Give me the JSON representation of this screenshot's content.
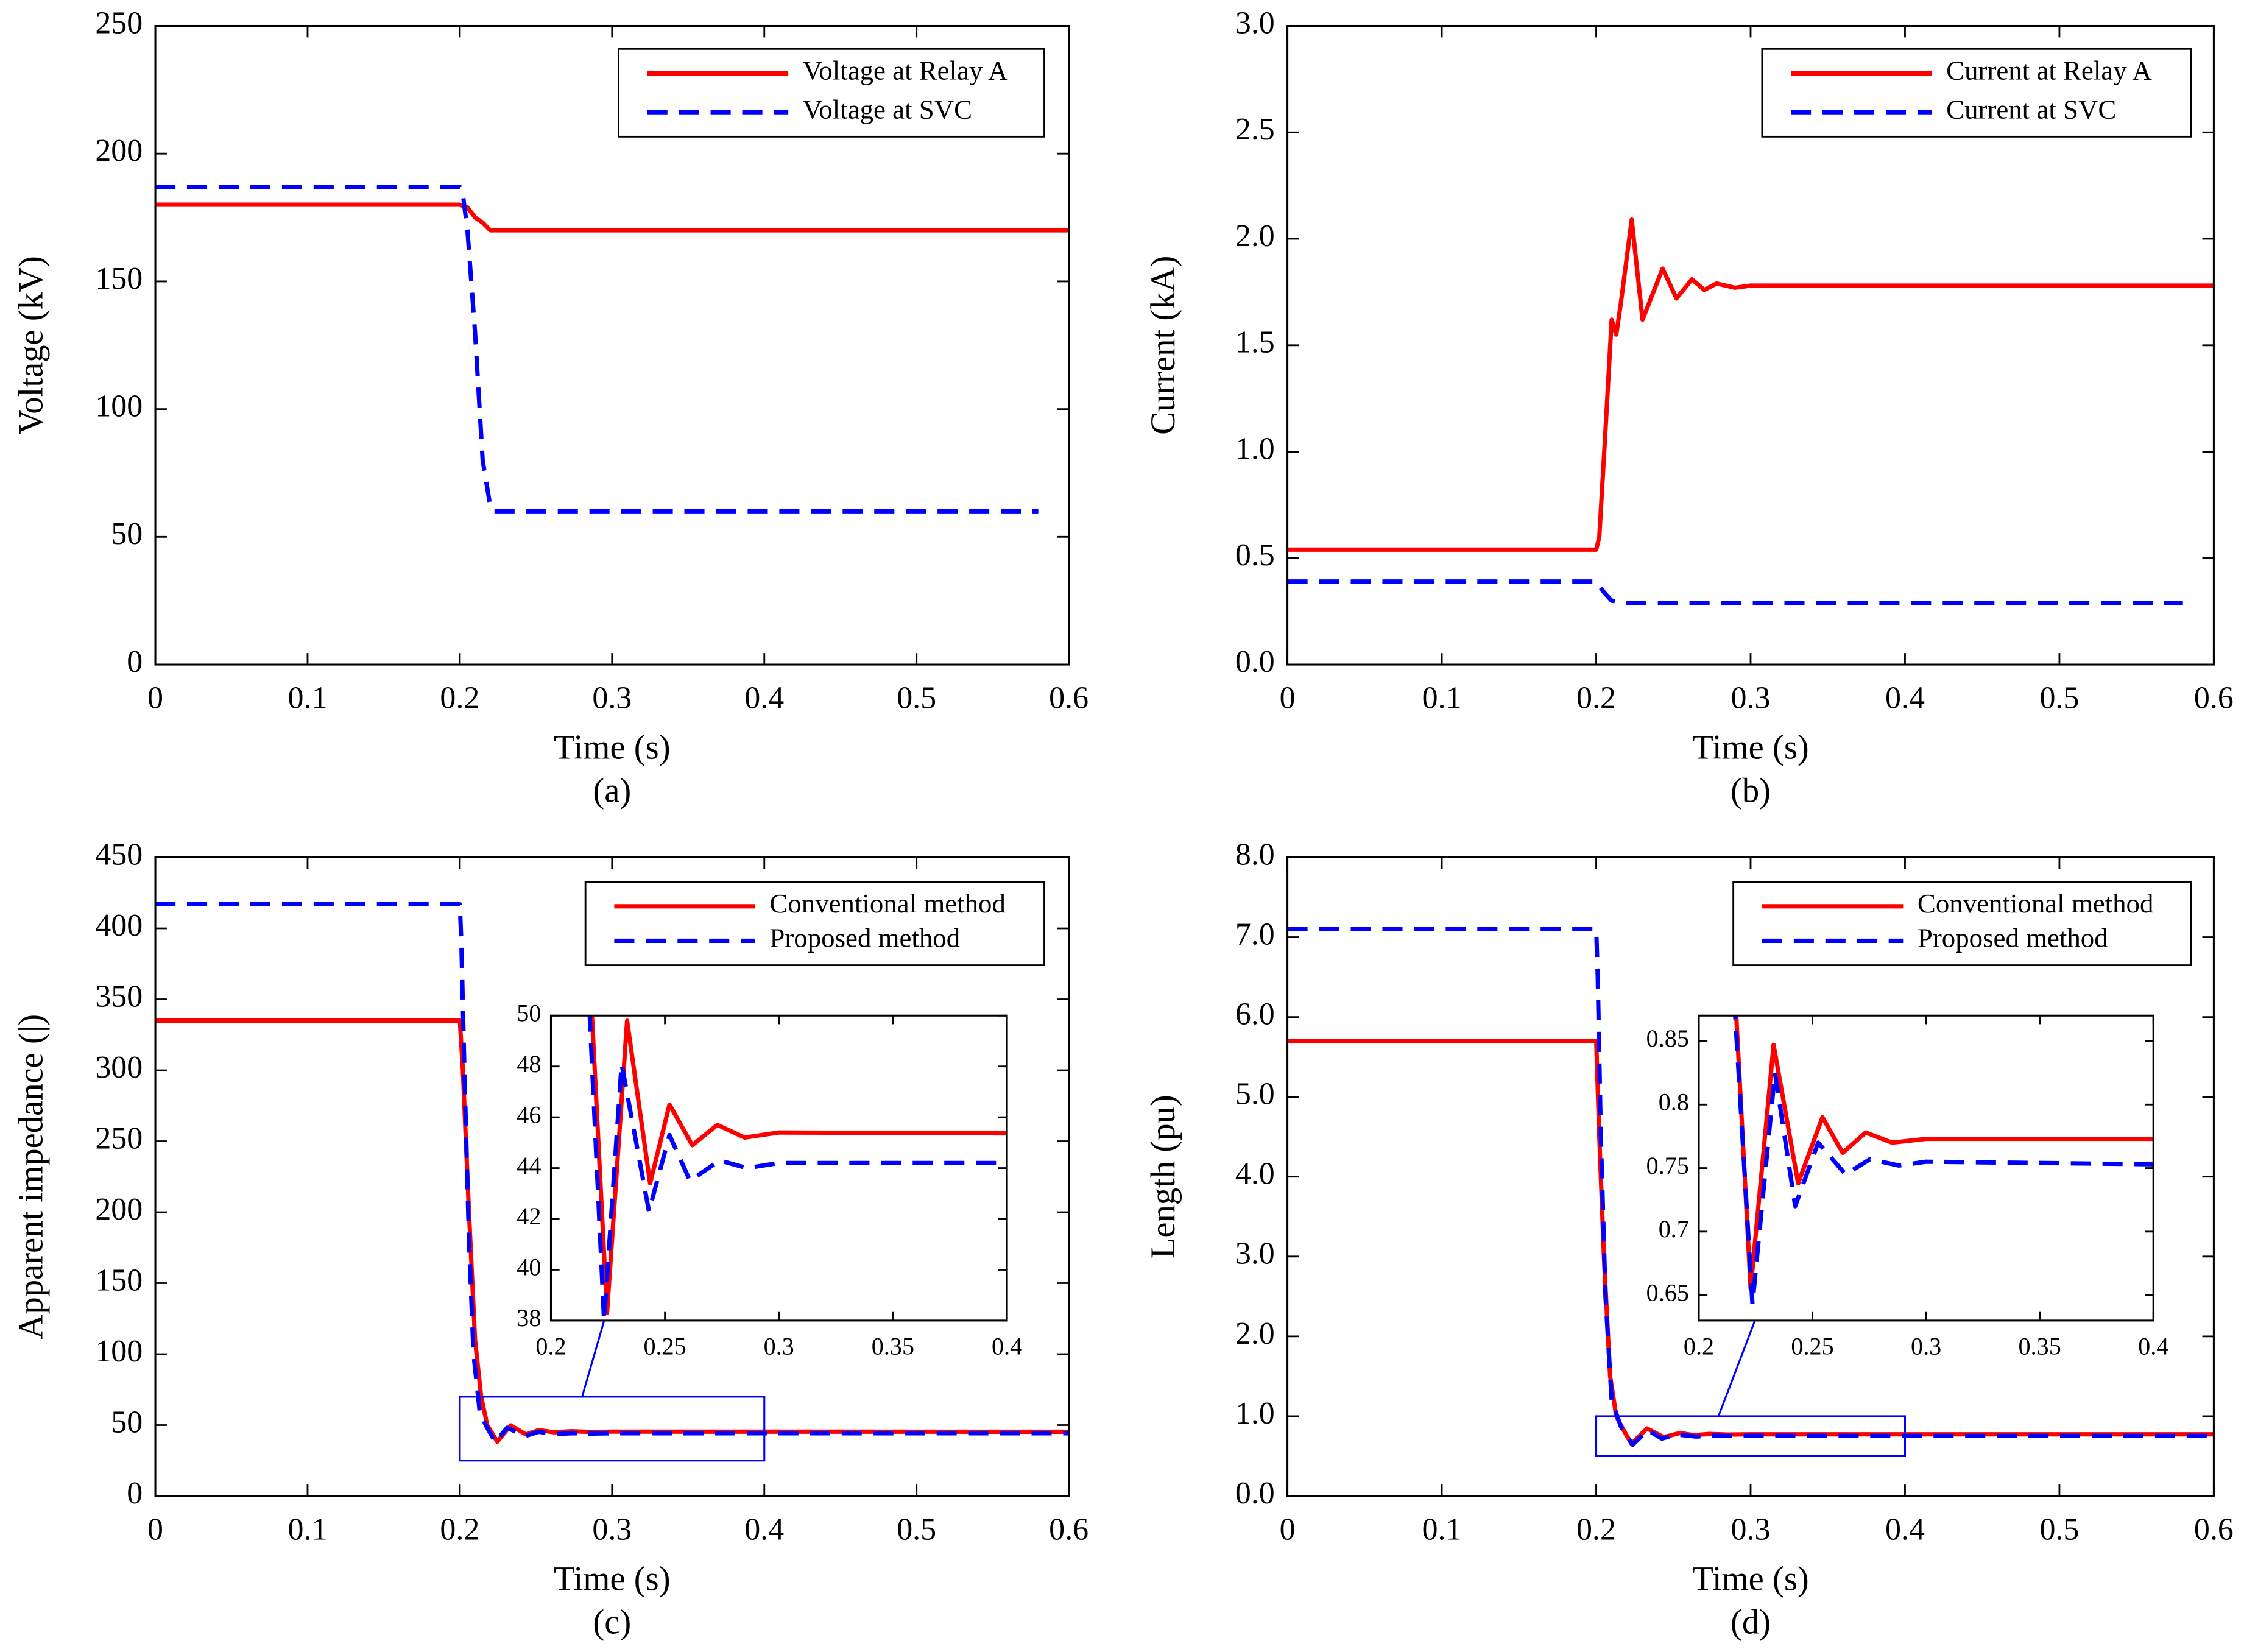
{
  "chart_data": [
    {
      "type": "line",
      "xlabel": "Time (s)",
      "ylabel": "Voltage (kV)",
      "caption": "(a)",
      "xlim": [
        0,
        0.6
      ],
      "xticks": [
        0,
        0.1,
        0.2,
        0.3,
        0.4,
        0.5,
        0.6
      ],
      "ylim": [
        0,
        250
      ],
      "yticks": [
        0,
        50,
        100,
        150,
        200,
        250
      ],
      "legend": "upper right",
      "series": [
        {
          "name": "Voltage at Relay A",
          "color": "#ff0000",
          "style": "solid",
          "x": [
            0,
            0.2,
            0.205,
            0.21,
            0.215,
            0.22,
            0.6
          ],
          "values": [
            180,
            180,
            179,
            175,
            173,
            170,
            170
          ]
        },
        {
          "name": "Voltage at SVC",
          "color": "#0000ff",
          "style": "dashed",
          "x": [
            0,
            0.2,
            0.202,
            0.205,
            0.21,
            0.215,
            0.22,
            0.222,
            0.225,
            0.58
          ],
          "values": [
            187,
            187,
            184,
            170,
            130,
            80,
            62,
            60,
            60,
            60
          ]
        }
      ]
    },
    {
      "type": "line",
      "xlabel": "Time (s)",
      "ylabel": "Current (kA)",
      "caption": "(b)",
      "xlim": [
        0,
        0.6
      ],
      "xticks": [
        0,
        0.1,
        0.2,
        0.3,
        0.4,
        0.5,
        0.6
      ],
      "ylim": [
        0,
        3
      ],
      "yticks": [
        {
          "value": 0,
          "label": "0.0"
        },
        0.5,
        {
          "value": 1,
          "label": "1.0"
        },
        1.5,
        {
          "value": 2,
          "label": "2.0"
        },
        2.5,
        {
          "value": 3,
          "label": "3.0"
        }
      ],
      "legend": "upper right",
      "series": [
        {
          "name": "Current at Relay A",
          "color": "#ff0000",
          "style": "solid",
          "x": [
            0,
            0.2,
            0.202,
            0.206,
            0.21,
            0.213,
            0.216,
            0.223,
            0.23,
            0.243,
            0.252,
            0.262,
            0.27,
            0.278,
            0.29,
            0.3,
            0.6
          ],
          "values": [
            0.54,
            0.54,
            0.6,
            1.1,
            1.62,
            1.55,
            1.7,
            2.09,
            1.62,
            1.86,
            1.72,
            1.81,
            1.76,
            1.79,
            1.77,
            1.78,
            1.78
          ]
        },
        {
          "name": "Current at SVC",
          "color": "#0000ff",
          "style": "dashed",
          "x": [
            0,
            0.2,
            0.205,
            0.21,
            0.22,
            0.58
          ],
          "values": [
            0.39,
            0.39,
            0.34,
            0.3,
            0.29,
            0.29
          ]
        }
      ]
    },
    {
      "type": "line",
      "xlabel": "Time (s)",
      "ylabel": "Apparent impedance (|)",
      "caption": "(c)",
      "xlim": [
        0,
        0.6
      ],
      "xticks": [
        0,
        0.1,
        0.2,
        0.3,
        0.4,
        0.5,
        0.6
      ],
      "ylim": [
        0,
        450
      ],
      "yticks": [
        0,
        50,
        100,
        150,
        200,
        250,
        300,
        350,
        400,
        450
      ],
      "legend": "upper right",
      "series": [
        {
          "name": "Conventional method",
          "color": "#ff0000",
          "style": "solid",
          "x": [
            0,
            0.2,
            0.202,
            0.206,
            0.21,
            0.214,
            0.218,
            0.2246,
            0.2334,
            0.2435,
            0.252,
            0.262,
            0.273,
            0.285,
            0.3,
            0.6
          ],
          "values": [
            335,
            335,
            300,
            200,
            110,
            70,
            50,
            38.3,
            49.8,
            43.4,
            46.5,
            44.9,
            45.7,
            45.2,
            45.4,
            45.3
          ]
        },
        {
          "name": "Proposed method",
          "color": "#0000ff",
          "style": "dashed",
          "x": [
            0,
            0.2,
            0.201,
            0.203,
            0.206,
            0.209,
            0.213,
            0.217,
            0.2233,
            0.231,
            0.243,
            0.252,
            0.261,
            0.274,
            0.286,
            0.3,
            0.6
          ],
          "values": [
            417,
            417,
            390,
            300,
            180,
            100,
            60,
            50,
            38,
            48.1,
            42.3,
            45.3,
            43.5,
            44.3,
            44,
            44.2,
            44.2
          ]
        }
      ],
      "inset": {
        "xlim": [
          0.2,
          0.4
        ],
        "xticks": [
          0.2,
          0.25,
          0.3,
          0.35,
          0.4
        ],
        "ylim": [
          38,
          50
        ],
        "yticks": [
          38,
          40,
          42,
          44,
          46,
          48,
          50
        ],
        "zoom_ylim": [
          25,
          70
        ]
      }
    },
    {
      "type": "line",
      "xlabel": "Time (s)",
      "ylabel": "Length (pu)",
      "caption": "(d)",
      "xlim": [
        0,
        0.6
      ],
      "xticks": [
        0,
        0.1,
        0.2,
        0.3,
        0.4,
        0.5,
        0.6
      ],
      "ylim": [
        0,
        8
      ],
      "yticks": [
        {
          "value": 0,
          "label": "0.0"
        },
        {
          "value": 1,
          "label": "1.0"
        },
        {
          "value": 2,
          "label": "2.0"
        },
        {
          "value": 3,
          "label": "3.0"
        },
        {
          "value": 4,
          "label": "4.0"
        },
        {
          "value": 5,
          "label": "5.0"
        },
        {
          "value": 6,
          "label": "6.0"
        },
        {
          "value": 7,
          "label": "7.0"
        },
        {
          "value": 8,
          "label": "8.0"
        }
      ],
      "legend": "upper right",
      "series": [
        {
          "name": "Conventional method",
          "color": "#ff0000",
          "style": "solid",
          "x": [
            0,
            0.2,
            0.202,
            0.205,
            0.209,
            0.213,
            0.2165,
            0.2228,
            0.2329,
            0.2437,
            0.2544,
            0.2633,
            0.2734,
            0.285,
            0.3,
            0.6
          ],
          "values": [
            5.7,
            5.7,
            4.5,
            3,
            1.5,
            1,
            0.869,
            0.655,
            0.847,
            0.738,
            0.79,
            0.762,
            0.778,
            0.77,
            0.773,
            0.773
          ]
        },
        {
          "name": "Proposed method",
          "color": "#0000ff",
          "style": "dashed",
          "x": [
            0,
            0.2,
            0.201,
            0.203,
            0.206,
            0.21,
            0.216,
            0.2236,
            0.2335,
            0.2424,
            0.2525,
            0.2646,
            0.2753,
            0.288,
            0.3,
            0.4,
            0.6
          ],
          "values": [
            7.1,
            7.1,
            6.5,
            4.5,
            2.5,
            1.2,
            0.87,
            0.643,
            0.825,
            0.72,
            0.77,
            0.745,
            0.757,
            0.752,
            0.755,
            0.753,
            0.753
          ]
        }
      ],
      "inset": {
        "xlim": [
          0.2,
          0.4
        ],
        "xticks": [
          0.2,
          0.25,
          0.3,
          0.35,
          0.4
        ],
        "ylim": [
          0.63,
          0.87
        ],
        "yticks": [
          0.65,
          0.7,
          0.75,
          0.8,
          0.85
        ],
        "zoom_ylim": [
          0.5,
          1.0
        ]
      }
    }
  ]
}
